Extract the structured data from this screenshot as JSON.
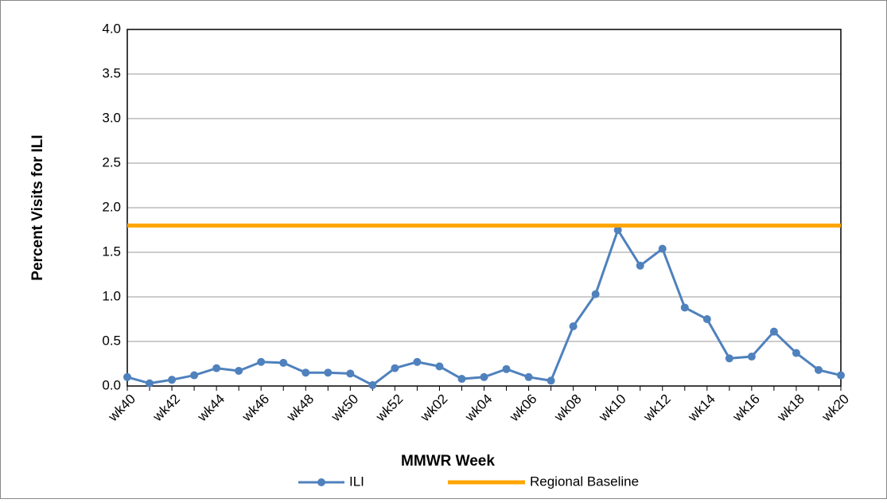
{
  "chart_data": {
    "type": "line",
    "x_label": "MMWR Week",
    "y_label": "Percent Visits for ILI",
    "categories": [
      "wk40",
      null,
      "wk42",
      null,
      "wk44",
      null,
      "wk46",
      null,
      "wk48",
      null,
      "wk50",
      null,
      "wk52",
      null,
      "wk02",
      null,
      "wk04",
      null,
      "wk06",
      null,
      "wk08",
      null,
      "wk10",
      null,
      "wk12",
      null,
      "wk14",
      null,
      "wk16",
      null,
      "wk18",
      null,
      "wk20"
    ],
    "series": [
      {
        "name": "ILI",
        "color": "#4f81bd",
        "markers": true,
        "values": [
          0.1,
          0.03,
          0.07,
          0.12,
          0.2,
          0.17,
          0.27,
          0.26,
          0.15,
          0.15,
          0.14,
          0.01,
          0.2,
          0.27,
          0.22,
          0.08,
          0.1,
          0.19,
          0.1,
          0.06,
          0.67,
          1.03,
          1.75,
          1.35,
          1.54,
          0.88,
          0.75,
          0.31,
          0.33,
          0.61,
          0.37,
          0.18,
          0.12
        ]
      },
      {
        "name": "Regional Baseline",
        "color": "#ffa500",
        "markers": false,
        "values": [
          1.8,
          1.8,
          1.8,
          1.8,
          1.8,
          1.8,
          1.8,
          1.8,
          1.8,
          1.8,
          1.8,
          1.8,
          1.8,
          1.8,
          1.8,
          1.8,
          1.8,
          1.8,
          1.8,
          1.8,
          1.8,
          1.8,
          1.8,
          1.8,
          1.8,
          1.8,
          1.8,
          1.8,
          1.8,
          1.8,
          1.8,
          1.8,
          1.8
        ]
      }
    ],
    "ylim": [
      0,
      4
    ],
    "yticks": [
      {
        "value": 0,
        "label": "0.0"
      },
      {
        "value": 0.5,
        "label": "0.5"
      },
      {
        "value": 1,
        "label": "1.0"
      },
      {
        "value": 1.5,
        "label": "1.5"
      },
      {
        "value": 2,
        "label": "2.0"
      },
      {
        "value": 2.5,
        "label": "2.5"
      },
      {
        "value": 3,
        "label": "3.0"
      },
      {
        "value": 3.5,
        "label": "3.5"
      },
      {
        "value": 4,
        "label": "4.0"
      }
    ],
    "grid": true,
    "legend": "bottom"
  }
}
